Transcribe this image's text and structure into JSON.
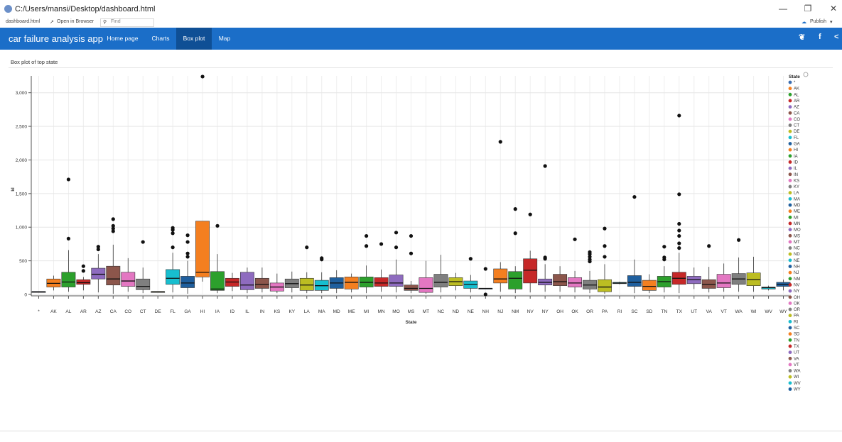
{
  "window": {
    "title": "C:/Users/mansi/Desktop/dashboard.html",
    "minimize_icon": "minimize-icon",
    "restore_icon": "restore-icon",
    "close_icon": "close-icon"
  },
  "toolbar": {
    "tab_label": "dashboard.html",
    "open_browser": "Open in Browser",
    "find_placeholder": "Find",
    "publish": "Publish"
  },
  "nav": {
    "brand": "car failure analysis app",
    "items": [
      "Home page",
      "Charts",
      "Box plot",
      "Map"
    ],
    "active": "Box plot"
  },
  "panel": {
    "title": "Box plot of top state"
  },
  "colors": {
    "nav_bg": "#1b6ec8",
    "nav_active": "#0f4f95"
  },
  "chart_data": {
    "type": "boxplot",
    "xlabel": "State",
    "ylabel": "kl",
    "ylim": [
      0,
      3250
    ],
    "yticks": [
      0,
      500,
      1000,
      1500,
      2000,
      2500,
      3000
    ],
    "ytick_labels": [
      "0",
      "500",
      "1,000",
      "1,500",
      "2,000",
      "2,500",
      "3,000"
    ],
    "legend_title": "State",
    "legend_placement": "right",
    "grid": true,
    "series": [
      {
        "name": "*",
        "color": "#3b6db0",
        "q1": 40,
        "median": 40,
        "q3": 40,
        "min": 40,
        "max": 40,
        "outliers": []
      },
      {
        "name": "AK",
        "color": "#f47f20",
        "q1": 110,
        "median": 165,
        "q3": 230,
        "min": 60,
        "max": 280,
        "outliers": []
      },
      {
        "name": "AL",
        "color": "#2ca02c",
        "q1": 110,
        "median": 185,
        "q3": 330,
        "min": 40,
        "max": 660,
        "outliers": [
          830,
          1710
        ]
      },
      {
        "name": "AR",
        "color": "#c62828",
        "q1": 150,
        "median": 175,
        "q3": 220,
        "min": 60,
        "max": 260,
        "outliers": [
          350,
          420
        ]
      },
      {
        "name": "AZ",
        "color": "#8e6bbf",
        "q1": 230,
        "median": 300,
        "q3": 390,
        "min": 30,
        "max": 600,
        "outliers": [
          670,
          710
        ]
      },
      {
        "name": "CA",
        "color": "#8c564b",
        "q1": 140,
        "median": 230,
        "q3": 420,
        "min": 10,
        "max": 740,
        "outliers": [
          940,
          980,
          1020,
          1120
        ]
      },
      {
        "name": "CO",
        "color": "#e377c2",
        "q1": 120,
        "median": 200,
        "q3": 330,
        "min": 40,
        "max": 540,
        "outliers": []
      },
      {
        "name": "CT",
        "color": "#7f7f7f",
        "q1": 70,
        "median": 120,
        "q3": 230,
        "min": 20,
        "max": 400,
        "outliers": [
          780
        ]
      },
      {
        "name": "DE",
        "color": "#bcbd22",
        "q1": 40,
        "median": 40,
        "q3": 40,
        "min": 40,
        "max": 40,
        "outliers": []
      },
      {
        "name": "FL",
        "color": "#17becf",
        "q1": 150,
        "median": 240,
        "q3": 370,
        "min": 30,
        "max": 620,
        "outliers": [
          700,
          910,
          960,
          990
        ]
      },
      {
        "name": "GA",
        "color": "#1f5f9e",
        "q1": 100,
        "median": 170,
        "q3": 270,
        "min": 10,
        "max": 500,
        "outliers": [
          560,
          610,
          780,
          880
        ]
      },
      {
        "name": "HI",
        "color": "#f47f20",
        "q1": 260,
        "median": 330,
        "q3": 1090,
        "min": 190,
        "max": 1090,
        "outliers": [
          3240
        ]
      },
      {
        "name": "IA",
        "color": "#2ca02c",
        "q1": 60,
        "median": 80,
        "q3": 340,
        "min": 20,
        "max": 600,
        "outliers": [
          1020
        ]
      },
      {
        "name": "ID",
        "color": "#c62828",
        "q1": 120,
        "median": 185,
        "q3": 240,
        "min": 50,
        "max": 320,
        "outliers": []
      },
      {
        "name": "IL",
        "color": "#8e6bbf",
        "q1": 70,
        "median": 140,
        "q3": 330,
        "min": 20,
        "max": 400,
        "outliers": []
      },
      {
        "name": "IN",
        "color": "#8c564b",
        "q1": 90,
        "median": 150,
        "q3": 240,
        "min": 30,
        "max": 400,
        "outliers": []
      },
      {
        "name": "KS",
        "color": "#e377c2",
        "q1": 50,
        "median": 110,
        "q3": 170,
        "min": 20,
        "max": 310,
        "outliers": []
      },
      {
        "name": "KY",
        "color": "#7f7f7f",
        "q1": 100,
        "median": 160,
        "q3": 230,
        "min": 30,
        "max": 340,
        "outliers": []
      },
      {
        "name": "LA",
        "color": "#bcbd22",
        "q1": 60,
        "median": 140,
        "q3": 240,
        "min": 20,
        "max": 330,
        "outliers": [
          700
        ]
      },
      {
        "name": "MA",
        "color": "#17becf",
        "q1": 60,
        "median": 130,
        "q3": 210,
        "min": 20,
        "max": 330,
        "outliers": [
          520,
          540
        ]
      },
      {
        "name": "MD",
        "color": "#1f5f9e",
        "q1": 90,
        "median": 170,
        "q3": 250,
        "min": 20,
        "max": 360,
        "outliers": []
      },
      {
        "name": "ME",
        "color": "#f47f20",
        "q1": 80,
        "median": 180,
        "q3": 260,
        "min": 30,
        "max": 310,
        "outliers": []
      },
      {
        "name": "MI",
        "color": "#2ca02c",
        "q1": 110,
        "median": 180,
        "q3": 260,
        "min": 20,
        "max": 430,
        "outliers": [
          720,
          870
        ]
      },
      {
        "name": "MN",
        "color": "#c62828",
        "q1": 120,
        "median": 170,
        "q3": 250,
        "min": 40,
        "max": 370,
        "outliers": [
          750
        ]
      },
      {
        "name": "MO",
        "color": "#8e6bbf",
        "q1": 120,
        "median": 170,
        "q3": 290,
        "min": 30,
        "max": 520,
        "outliers": [
          700,
          920
        ]
      },
      {
        "name": "MS",
        "color": "#8c564b",
        "q1": 60,
        "median": 90,
        "q3": 140,
        "min": 20,
        "max": 200,
        "outliers": [
          610,
          870
        ]
      },
      {
        "name": "MT",
        "color": "#e377c2",
        "q1": 30,
        "median": 90,
        "q3": 250,
        "min": 10,
        "max": 500,
        "outliers": []
      },
      {
        "name": "NC",
        "color": "#7f7f7f",
        "q1": 110,
        "median": 180,
        "q3": 300,
        "min": 30,
        "max": 590,
        "outliers": []
      },
      {
        "name": "ND",
        "color": "#bcbd22",
        "q1": 130,
        "median": 190,
        "q3": 250,
        "min": 60,
        "max": 320,
        "outliers": []
      },
      {
        "name": "NE",
        "color": "#17becf",
        "q1": 90,
        "median": 150,
        "q3": 200,
        "min": 30,
        "max": 290,
        "outliers": [
          530
        ]
      },
      {
        "name": "NH",
        "color": "#1f5f9e",
        "q1": 90,
        "median": 90,
        "q3": 90,
        "min": 90,
        "max": 90,
        "outliers": [
          0,
          380
        ]
      },
      {
        "name": "NJ",
        "color": "#f47f20",
        "q1": 170,
        "median": 230,
        "q3": 380,
        "min": 40,
        "max": 480,
        "outliers": [
          2270
        ]
      },
      {
        "name": "NM",
        "color": "#2ca02c",
        "q1": 80,
        "median": 240,
        "q3": 340,
        "min": 20,
        "max": 420,
        "outliers": [
          910,
          1270
        ]
      },
      {
        "name": "NV",
        "color": "#c62828",
        "q1": 170,
        "median": 360,
        "q3": 530,
        "min": 30,
        "max": 650,
        "outliers": [
          1190
        ]
      },
      {
        "name": "NY",
        "color": "#8e6bbf",
        "q1": 140,
        "median": 180,
        "q3": 230,
        "min": 40,
        "max": 450,
        "outliers": [
          530,
          550,
          1910
        ]
      },
      {
        "name": "OH",
        "color": "#8c564b",
        "q1": 130,
        "median": 190,
        "q3": 300,
        "min": 40,
        "max": 420,
        "outliers": []
      },
      {
        "name": "OK",
        "color": "#e377c2",
        "q1": 110,
        "median": 170,
        "q3": 250,
        "min": 30,
        "max": 350,
        "outliers": [
          820
        ]
      },
      {
        "name": "OR",
        "color": "#7f7f7f",
        "q1": 80,
        "median": 140,
        "q3": 210,
        "min": 20,
        "max": 350,
        "outliers": [
          490,
          520,
          560,
          600,
          630
        ]
      },
      {
        "name": "PA",
        "color": "#bcbd22",
        "q1": 40,
        "median": 110,
        "q3": 220,
        "min": 10,
        "max": 450,
        "outliers": [
          560,
          720,
          980
        ]
      },
      {
        "name": "RI",
        "color": "#17becf",
        "q1": 160,
        "median": 170,
        "q3": 180,
        "min": 150,
        "max": 190,
        "outliers": []
      },
      {
        "name": "SC",
        "color": "#1f5f9e",
        "q1": 120,
        "median": 180,
        "q3": 280,
        "min": 20,
        "max": 520,
        "outliers": [
          1450
        ]
      },
      {
        "name": "SD",
        "color": "#f47f20",
        "q1": 60,
        "median": 120,
        "q3": 210,
        "min": 20,
        "max": 300,
        "outliers": []
      },
      {
        "name": "TN",
        "color": "#2ca02c",
        "q1": 110,
        "median": 190,
        "q3": 270,
        "min": 30,
        "max": 420,
        "outliers": [
          520,
          550,
          710
        ]
      },
      {
        "name": "TX",
        "color": "#c62828",
        "q1": 150,
        "median": 240,
        "q3": 330,
        "min": 20,
        "max": 620,
        "outliers": [
          690,
          760,
          870,
          950,
          1050,
          1490,
          2660
        ]
      },
      {
        "name": "UT",
        "color": "#8e6bbf",
        "q1": 160,
        "median": 220,
        "q3": 270,
        "min": 80,
        "max": 400,
        "outliers": []
      },
      {
        "name": "VA",
        "color": "#8c564b",
        "q1": 90,
        "median": 150,
        "q3": 220,
        "min": 30,
        "max": 410,
        "outliers": [
          720
        ]
      },
      {
        "name": "VT",
        "color": "#e377c2",
        "q1": 100,
        "median": 170,
        "q3": 300,
        "min": 40,
        "max": 460,
        "outliers": []
      },
      {
        "name": "WA",
        "color": "#7f7f7f",
        "q1": 150,
        "median": 230,
        "q3": 310,
        "min": 40,
        "max": 550,
        "outliers": [
          810
        ]
      },
      {
        "name": "WI",
        "color": "#bcbd22",
        "q1": 130,
        "median": 220,
        "q3": 320,
        "min": 40,
        "max": 560,
        "outliers": []
      },
      {
        "name": "WV",
        "color": "#17becf",
        "q1": 80,
        "median": 100,
        "q3": 110,
        "min": 60,
        "max": 130,
        "outliers": []
      },
      {
        "name": "WY",
        "color": "#1f5f9e",
        "q1": 120,
        "median": 150,
        "q3": 180,
        "min": 60,
        "max": 220,
        "outliers": []
      }
    ]
  }
}
